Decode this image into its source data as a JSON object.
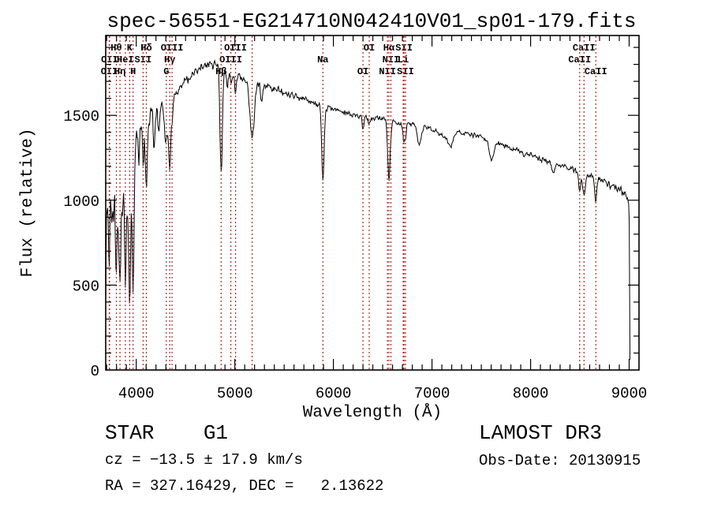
{
  "title": "spec-56551-EG214710N042410V01_sp01-179.fits",
  "annotations": {
    "object_type": "STAR    G1",
    "cz": "cz = −13.5 ± 17.9 km/s",
    "ra_dec": "RA = 327.16429, DEC =   2.13622",
    "survey": "LAMOST DR3",
    "obs_date": "Obs-Date: 20130915"
  },
  "chart_data": {
    "type": "line",
    "title": "spec-56551-EG214710N042410V01_sp01-179.fits",
    "xlabel": "Wavelength (Å)",
    "ylabel": "Flux (relative)",
    "xlim": [
      3690,
      9100
    ],
    "ylim": [
      0,
      1970
    ],
    "xticks": [
      4000,
      5000,
      6000,
      7000,
      8000,
      9000
    ],
    "yticks": [
      0,
      500,
      1000,
      1500
    ],
    "x_minor_step": 100,
    "y_minor_step": 100,
    "grid": false,
    "legend": false,
    "colors": {
      "trace": "#000000",
      "line_marker": "#a52a2a",
      "text": "#000000",
      "background": "#ffffff"
    },
    "noise_seed": 20130915,
    "sample_step_angstrom": 6,
    "continuum": [
      [
        3690,
        350
      ],
      [
        3697,
        950
      ],
      [
        3710,
        1020
      ],
      [
        3730,
        1060
      ],
      [
        3760,
        1090
      ],
      [
        3800,
        1140
      ],
      [
        3850,
        1190
      ],
      [
        3900,
        1210
      ],
      [
        3950,
        1230
      ],
      [
        3985,
        1330
      ],
      [
        4010,
        1420
      ],
      [
        4060,
        1470
      ],
      [
        4150,
        1510
      ],
      [
        4250,
        1545
      ],
      [
        4350,
        1590
      ],
      [
        4450,
        1665
      ],
      [
        4550,
        1730
      ],
      [
        4650,
        1785
      ],
      [
        4720,
        1805
      ],
      [
        4800,
        1800
      ],
      [
        4870,
        1785
      ],
      [
        4950,
        1745
      ],
      [
        5050,
        1720
      ],
      [
        5150,
        1705
      ],
      [
        5250,
        1685
      ],
      [
        5350,
        1665
      ],
      [
        5450,
        1645
      ],
      [
        5550,
        1625
      ],
      [
        5650,
        1605
      ],
      [
        5750,
        1585
      ],
      [
        5850,
        1565
      ],
      [
        5950,
        1545
      ],
      [
        6050,
        1530
      ],
      [
        6150,
        1515
      ],
      [
        6250,
        1495
      ],
      [
        6350,
        1485
      ],
      [
        6450,
        1485
      ],
      [
        6550,
        1475
      ],
      [
        6650,
        1455
      ],
      [
        6750,
        1445
      ],
      [
        6850,
        1440
      ],
      [
        6950,
        1435
      ],
      [
        7050,
        1405
      ],
      [
        7120,
        1375
      ],
      [
        7250,
        1405
      ],
      [
        7350,
        1395
      ],
      [
        7450,
        1385
      ],
      [
        7550,
        1355
      ],
      [
        7650,
        1335
      ],
      [
        7750,
        1315
      ],
      [
        7850,
        1295
      ],
      [
        7950,
        1275
      ],
      [
        8050,
        1255
      ],
      [
        8150,
        1235
      ],
      [
        8250,
        1215
      ],
      [
        8350,
        1195
      ],
      [
        8450,
        1175
      ],
      [
        8550,
        1155
      ],
      [
        8650,
        1135
      ],
      [
        8750,
        1110
      ],
      [
        8850,
        1080
      ],
      [
        8930,
        1045
      ],
      [
        8990,
        1010
      ],
      [
        9000,
        960
      ],
      [
        9003,
        700
      ],
      [
        9006,
        350
      ],
      [
        9008,
        60
      ]
    ],
    "noise_profile": [
      [
        3690,
        150
      ],
      [
        3960,
        150
      ],
      [
        4010,
        95
      ],
      [
        4300,
        80
      ],
      [
        4500,
        55
      ],
      [
        4800,
        48
      ],
      [
        5200,
        38
      ],
      [
        5700,
        30
      ],
      [
        6300,
        26
      ],
      [
        7000,
        24
      ],
      [
        7600,
        24
      ],
      [
        8200,
        28
      ],
      [
        8700,
        32
      ],
      [
        9000,
        36
      ],
      [
        9100,
        36
      ]
    ],
    "spectral_lines": [
      {
        "wavelength": 3726,
        "label": "OII",
        "row": 3,
        "marker": true,
        "depth": 280,
        "width": 7
      },
      {
        "wavelength": 3729,
        "label": "OII",
        "row": 2,
        "marker": true,
        "depth": 120,
        "width": 7
      },
      {
        "wavelength": 3750,
        "label": "",
        "row": 0,
        "marker": false,
        "depth": 220,
        "width": 6
      },
      {
        "wavelength": 3770,
        "label": "",
        "row": 0,
        "marker": false,
        "depth": 260,
        "width": 6
      },
      {
        "wavelength": 3798,
        "label": "Hθ",
        "row": 1,
        "marker": true,
        "depth": 650,
        "width": 8
      },
      {
        "wavelength": 3820,
        "label": "",
        "row": 0,
        "marker": false,
        "depth": 320,
        "width": 6
      },
      {
        "wavelength": 3835,
        "label": "Hη",
        "row": 3,
        "marker": true,
        "depth": 700,
        "width": 8
      },
      {
        "wavelength": 3857,
        "label": "",
        "row": 0,
        "marker": false,
        "depth": 300,
        "width": 6
      },
      {
        "wavelength": 3889,
        "label": "HeI",
        "row": 2,
        "marker": true,
        "depth": 760,
        "width": 9
      },
      {
        "wavelength": 3912,
        "label": "",
        "row": 0,
        "marker": false,
        "depth": 280,
        "width": 6
      },
      {
        "wavelength": 3933,
        "label": "K",
        "row": 1,
        "marker": true,
        "depth": 800,
        "width": 10
      },
      {
        "wavelength": 3968,
        "label": "H",
        "row": 3,
        "marker": true,
        "depth": 820,
        "width": 10
      },
      {
        "wavelength": 4026,
        "label": "",
        "row": 0,
        "marker": false,
        "depth": 240,
        "width": 7
      },
      {
        "wavelength": 4069,
        "label": "SII",
        "row": 2,
        "marker": true,
        "depth": 260,
        "width": 8
      },
      {
        "wavelength": 4102,
        "label": "Hδ",
        "row": 1,
        "marker": true,
        "depth": 420,
        "width": 10
      },
      {
        "wavelength": 4180,
        "label": "",
        "row": 0,
        "marker": false,
        "depth": 150,
        "width": 8
      },
      {
        "wavelength": 4227,
        "label": "",
        "row": 0,
        "marker": false,
        "depth": 140,
        "width": 7
      },
      {
        "wavelength": 4305,
        "label": "G",
        "row": 3,
        "marker": true,
        "depth": 240,
        "width": 16
      },
      {
        "wavelength": 4340,
        "label": "Hγ",
        "row": 2,
        "marker": true,
        "depth": 400,
        "width": 10
      },
      {
        "wavelength": 4363,
        "label": "OIII",
        "row": 1,
        "marker": true,
        "depth": 100,
        "width": 8
      },
      {
        "wavelength": 4861,
        "label": "Hβ",
        "row": 3,
        "marker": true,
        "depth": 640,
        "width": 12
      },
      {
        "wavelength": 4922,
        "label": "",
        "row": 0,
        "marker": false,
        "depth": 80,
        "width": 8
      },
      {
        "wavelength": 4959,
        "label": "OIII",
        "row": 2,
        "marker": true,
        "depth": 60,
        "width": 8
      },
      {
        "wavelength": 5007,
        "label": "OIII",
        "row": 1,
        "marker": true,
        "depth": 90,
        "width": 8
      },
      {
        "wavelength": 5175,
        "label": "",
        "row": 0,
        "marker": true,
        "depth": 330,
        "width": 22
      },
      {
        "wavelength": 5270,
        "label": "",
        "row": 0,
        "marker": false,
        "depth": 90,
        "width": 12
      },
      {
        "wavelength": 5893,
        "label": "Na",
        "row": 2,
        "marker": true,
        "depth": 440,
        "width": 12
      },
      {
        "wavelength": 6300,
        "label": "OI",
        "row": 3,
        "marker": true,
        "depth": 80,
        "width": 9
      },
      {
        "wavelength": 6363,
        "label": "OI",
        "row": 1,
        "marker": true,
        "depth": 50,
        "width": 8
      },
      {
        "wavelength": 6548,
        "label": "NII",
        "row": 3,
        "marker": true,
        "depth": 55,
        "width": 8
      },
      {
        "wavelength": 6563,
        "label": "Hα",
        "row": 1,
        "marker": true,
        "depth": 345,
        "width": 10
      },
      {
        "wavelength": 6583,
        "label": "NII",
        "row": 2,
        "marker": true,
        "depth": 60,
        "width": 8
      },
      {
        "wavelength": 6708,
        "label": "Li",
        "row": 2,
        "marker": true,
        "depth": 40,
        "width": 8
      },
      {
        "wavelength": 6716,
        "label": "SII",
        "row": 1,
        "marker": true,
        "depth": 70,
        "width": 8
      },
      {
        "wavelength": 6731,
        "label": "SII",
        "row": 3,
        "marker": true,
        "depth": 75,
        "width": 8
      },
      {
        "wavelength": 6870,
        "label": "",
        "row": 0,
        "marker": false,
        "depth": 120,
        "width": 18
      },
      {
        "wavelength": 7190,
        "label": "",
        "row": 0,
        "marker": false,
        "depth": 70,
        "width": 30
      },
      {
        "wavelength": 7605,
        "label": "",
        "row": 0,
        "marker": false,
        "depth": 110,
        "width": 20
      },
      {
        "wavelength": 8230,
        "label": "",
        "row": 0,
        "marker": false,
        "depth": 60,
        "width": 12
      },
      {
        "wavelength": 8498,
        "label": "CaII",
        "row": 2,
        "marker": true,
        "depth": 110,
        "width": 11
      },
      {
        "wavelength": 8542,
        "label": "CaII",
        "row": 1,
        "marker": true,
        "depth": 135,
        "width": 12
      },
      {
        "wavelength": 8662,
        "label": "CaII",
        "row": 3,
        "marker": true,
        "depth": 125,
        "width": 12
      }
    ]
  }
}
